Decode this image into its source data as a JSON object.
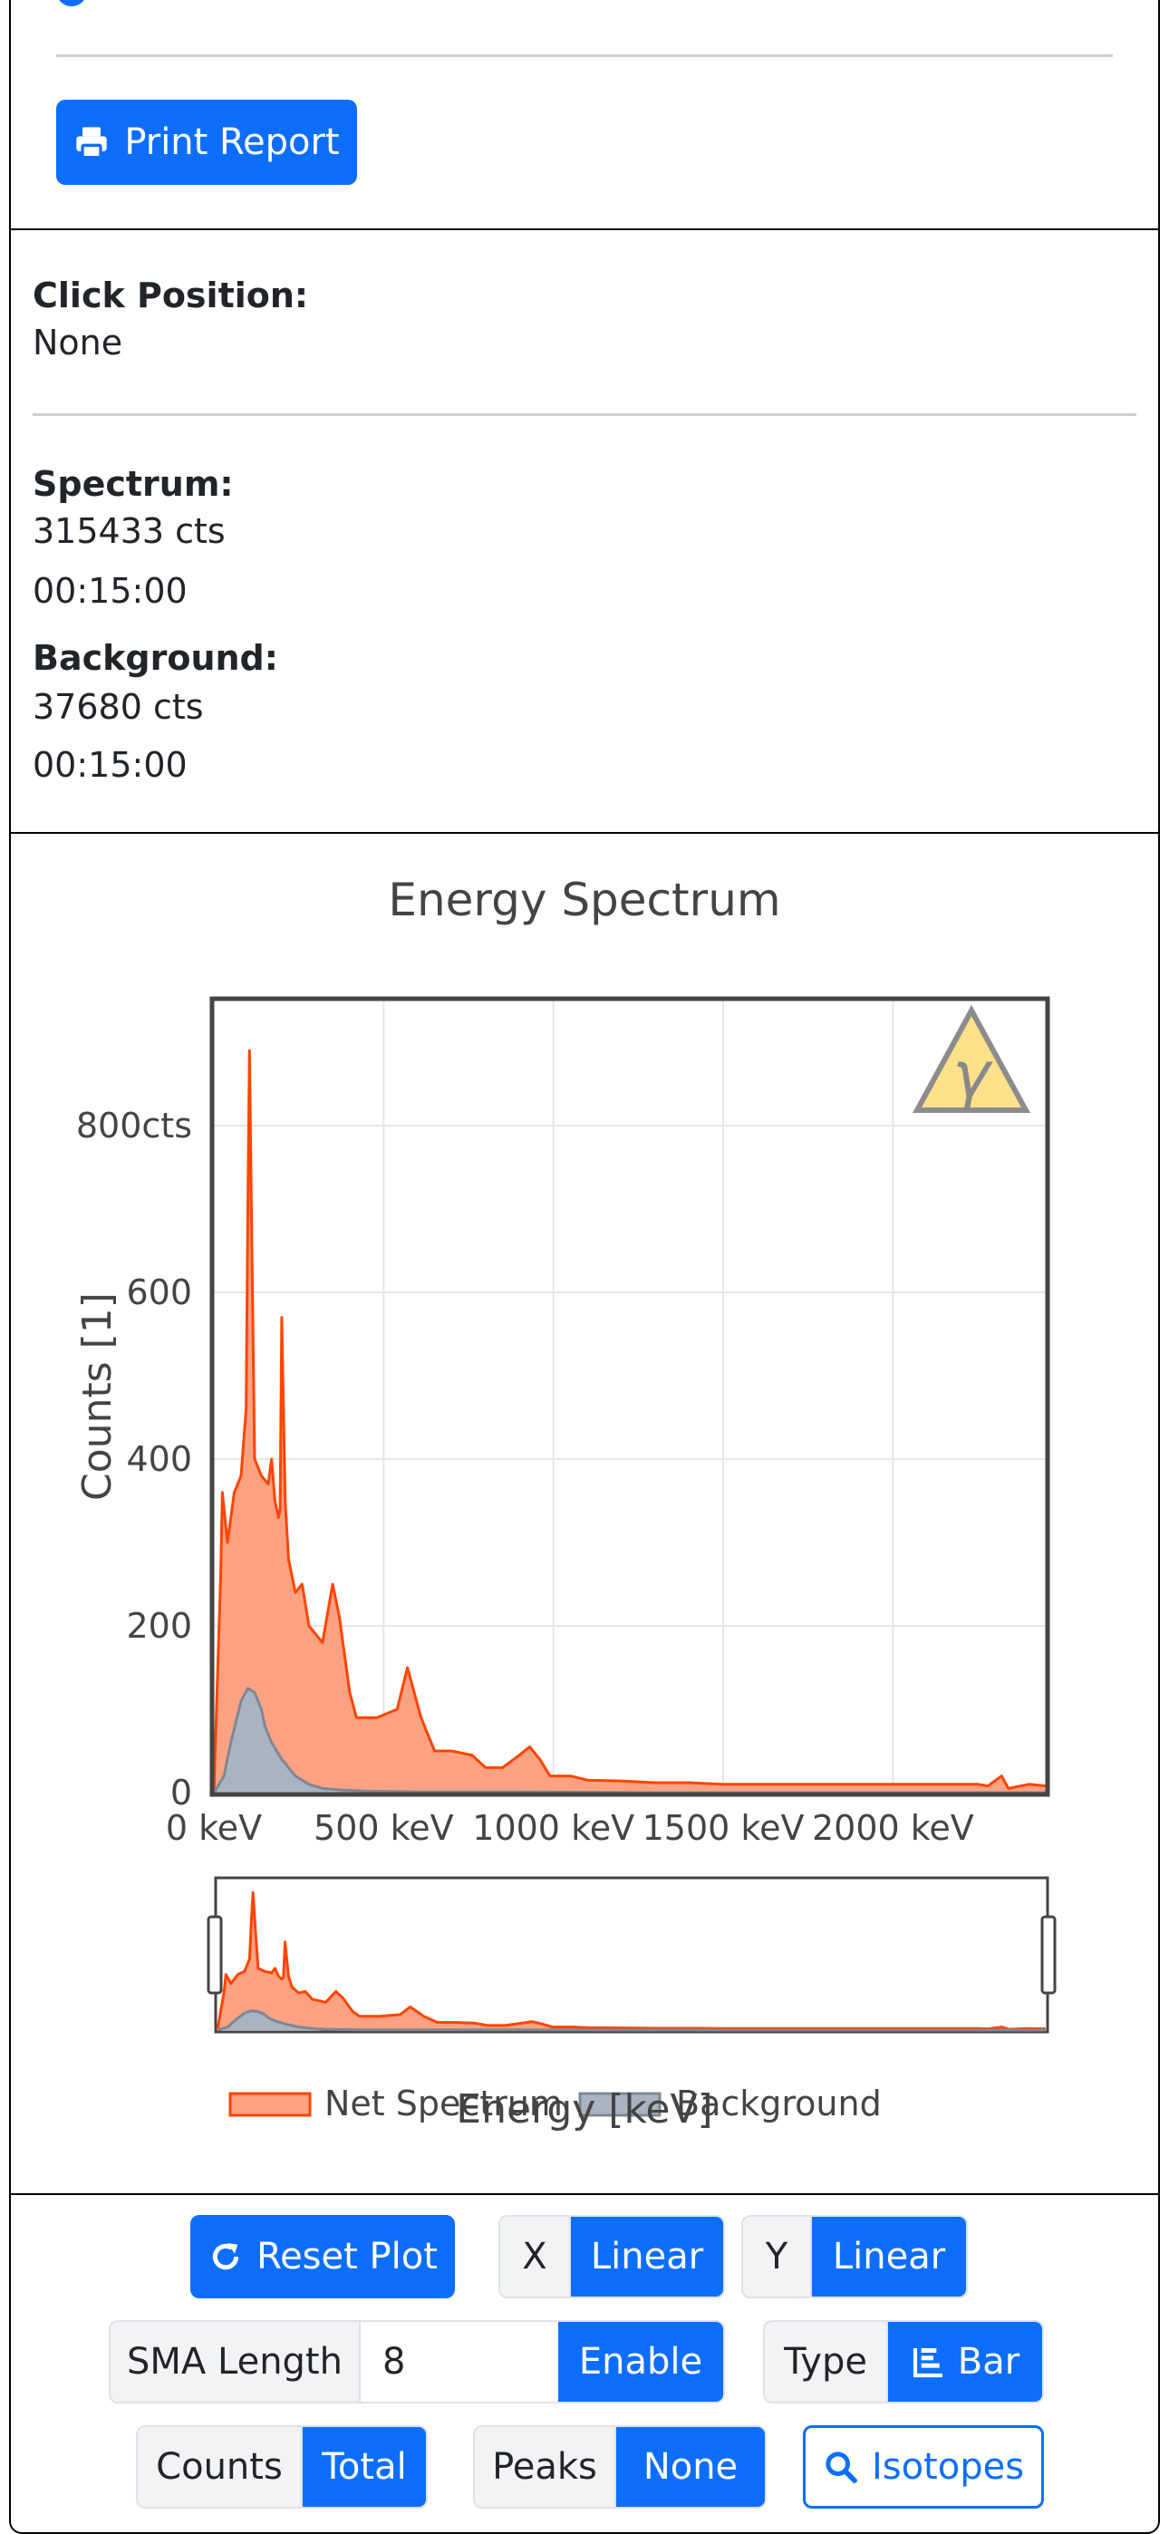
{
  "report": {
    "print_label": "Print Report"
  },
  "info": {
    "click_position_label": "Click Position:",
    "click_position_value": "None",
    "spectrum_label": "Spectrum:",
    "spectrum_counts": "315433 cts",
    "spectrum_time": "00:15:00",
    "background_label": "Background:",
    "background_counts": "37680 cts",
    "background_time": "00:15:00"
  },
  "controls": {
    "reset_label": "Reset Plot",
    "x_label": "X",
    "x_value": "Linear",
    "y_label": "Y",
    "y_value": "Linear",
    "sma_label": "SMA Length",
    "sma_value": "8",
    "sma_button": "Enable",
    "type_label": "Type",
    "type_value": "Bar",
    "counts_label": "Counts",
    "counts_value": "Total",
    "peaks_label": "Peaks",
    "peaks_value": "None",
    "isotopes_label": "Isotopes"
  },
  "colors": {
    "primary": "#0d6efd",
    "net_fill": "#fca283",
    "net_line": "#ff4500",
    "bg_fill": "#aab4c0",
    "bg_line": "#7d8894"
  },
  "chart_data": {
    "type": "area",
    "title": "Energy Spectrum",
    "xlabel": "Energy [keV]",
    "ylabel": "Counts [1]",
    "xlim": [
      0,
      2450
    ],
    "ylim": [
      0,
      950
    ],
    "x_ticks": [
      {
        "value": 0,
        "label": "0 keV"
      },
      {
        "value": 500,
        "label": "500 keV"
      },
      {
        "value": 1000,
        "label": "1000 keV"
      },
      {
        "value": 1500,
        "label": "1500 keV"
      },
      {
        "value": 2000,
        "label": "2000 keV"
      }
    ],
    "y_ticks": [
      {
        "value": 0,
        "label": "0"
      },
      {
        "value": 200,
        "label": "200"
      },
      {
        "value": 400,
        "label": "400"
      },
      {
        "value": 600,
        "label": "600"
      },
      {
        "value": 800,
        "label": "800cts"
      }
    ],
    "grid": true,
    "legend_position": "bottom",
    "series": [
      {
        "name": "Net Spectrum",
        "x": [
          0,
          20,
          25,
          40,
          60,
          80,
          95,
          100,
          105,
          112,
          120,
          140,
          160,
          170,
          180,
          190,
          195,
          200,
          210,
          220,
          240,
          260,
          280,
          320,
          350,
          370,
          390,
          400,
          420,
          450,
          480,
          540,
          570,
          590,
          610,
          620,
          650,
          700,
          760,
          800,
          850,
          900,
          930,
          960,
          990,
          1050,
          1100,
          1200,
          1300,
          1400,
          1500,
          1600,
          1700,
          1800,
          1900,
          2000,
          2100,
          2200,
          2250,
          2280,
          2320,
          2340,
          2400,
          2450
        ],
        "values": [
          0,
          260,
          360,
          300,
          360,
          380,
          460,
          700,
          890,
          650,
          400,
          380,
          370,
          400,
          350,
          330,
          340,
          570,
          350,
          280,
          240,
          250,
          200,
          180,
          250,
          210,
          150,
          120,
          90,
          90,
          90,
          100,
          150,
          120,
          90,
          80,
          50,
          50,
          45,
          30,
          30,
          45,
          55,
          40,
          20,
          20,
          15,
          14,
          12,
          12,
          10,
          10,
          10,
          10,
          10,
          10,
          10,
          10,
          10,
          8,
          20,
          5,
          10,
          8
        ]
      },
      {
        "name": "Background",
        "x": [
          0,
          30,
          50,
          80,
          100,
          120,
          140,
          150,
          170,
          200,
          240,
          280,
          320,
          380,
          450,
          600,
          900,
          1300,
          1800,
          2450
        ],
        "values": [
          0,
          20,
          60,
          110,
          125,
          120,
          100,
          80,
          60,
          40,
          20,
          10,
          5,
          3,
          2,
          1,
          1,
          0,
          0,
          0
        ]
      }
    ]
  }
}
